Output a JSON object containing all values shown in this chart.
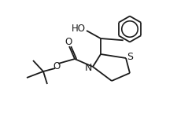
{
  "bg_color": "#ffffff",
  "line_color": "#1a1a1a",
  "line_width": 1.3,
  "font_size": 8.5,
  "figw": 2.25,
  "figh": 1.49,
  "xlim": [
    0,
    2.25
  ],
  "ylim": [
    0,
    1.49
  ]
}
